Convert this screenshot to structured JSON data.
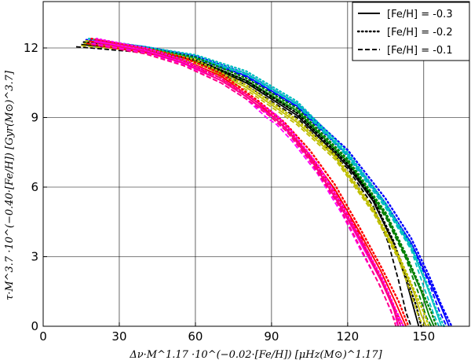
{
  "chart_data": {
    "type": "line",
    "xlabel": "Δν·M^1.17 ·10^(−0.02·[Fe/H]) [μHz(M⊙)^1.17]",
    "ylabel": "τ·M^3.7 ·10^(−0.40·[Fe/H]) [Gyr(M⊙)^3.7]",
    "xlim": [
      0,
      168
    ],
    "ylim": [
      0,
      14
    ],
    "x_ticks": [
      "0",
      "30",
      "60",
      "90",
      "120",
      "150"
    ],
    "y_ticks": [
      "0",
      "3",
      "6",
      "9",
      "12"
    ],
    "grid": true,
    "legend": {
      "placement": "top-right",
      "entries": [
        {
          "label": "[Fe/H] = -0.3",
          "dash": "solid"
        },
        {
          "label": "[Fe/H] = -0.2",
          "dash": "dotted"
        },
        {
          "label": "[Fe/H] = -0.1",
          "dash": "dashed"
        }
      ]
    },
    "series": [
      {
        "color": "#0000ff",
        "dash": "solid",
        "points": [
          [
            18,
            12.3
          ],
          [
            40,
            12.0
          ],
          [
            60,
            11.6
          ],
          [
            80,
            10.8
          ],
          [
            100,
            9.5
          ],
          [
            120,
            7.4
          ],
          [
            135,
            5.3
          ],
          [
            145,
            3.6
          ],
          [
            152,
            2.0
          ],
          [
            157,
            0.8
          ],
          [
            160,
            0.0
          ]
        ]
      },
      {
        "color": "#0000ff",
        "dash": "dotted",
        "points": [
          [
            17,
            12.35
          ],
          [
            40,
            12.05
          ],
          [
            60,
            11.65
          ],
          [
            80,
            10.9
          ],
          [
            100,
            9.6
          ],
          [
            120,
            7.6
          ],
          [
            135,
            5.5
          ],
          [
            145,
            3.8
          ],
          [
            152,
            2.2
          ],
          [
            157,
            0.9
          ],
          [
            161,
            0.0
          ]
        ]
      },
      {
        "color": "#0000ff",
        "dash": "dashed",
        "points": [
          [
            16,
            12.2
          ],
          [
            40,
            11.95
          ],
          [
            60,
            11.55
          ],
          [
            80,
            10.75
          ],
          [
            100,
            9.45
          ],
          [
            120,
            7.35
          ],
          [
            135,
            5.2
          ],
          [
            145,
            3.5
          ],
          [
            152,
            1.9
          ],
          [
            156,
            0.7
          ],
          [
            159,
            0.0
          ]
        ]
      },
      {
        "color": "#00bfbf",
        "dash": "solid",
        "points": [
          [
            17,
            12.3
          ],
          [
            40,
            12.0
          ],
          [
            60,
            11.6
          ],
          [
            80,
            10.9
          ],
          [
            100,
            9.6
          ],
          [
            120,
            7.4
          ],
          [
            135,
            5.2
          ],
          [
            145,
            3.4
          ],
          [
            151,
            1.8
          ],
          [
            155,
            0.6
          ],
          [
            157,
            0.0
          ]
        ]
      },
      {
        "color": "#00bfbf",
        "dash": "dotted",
        "points": [
          [
            18,
            12.4
          ],
          [
            40,
            12.05
          ],
          [
            60,
            11.7
          ],
          [
            80,
            11.0
          ],
          [
            100,
            9.7
          ],
          [
            120,
            7.5
          ],
          [
            135,
            5.3
          ],
          [
            145,
            3.5
          ],
          [
            151,
            1.9
          ],
          [
            155,
            0.7
          ],
          [
            158,
            0.0
          ]
        ]
      },
      {
        "color": "#00bfbf",
        "dash": "dashed",
        "points": [
          [
            16,
            12.25
          ],
          [
            40,
            11.95
          ],
          [
            60,
            11.55
          ],
          [
            80,
            10.85
          ],
          [
            100,
            9.55
          ],
          [
            120,
            7.3
          ],
          [
            135,
            5.1
          ],
          [
            145,
            3.3
          ],
          [
            150,
            1.7
          ],
          [
            154,
            0.5
          ],
          [
            156,
            0.0
          ]
        ]
      },
      {
        "color": "#007f00",
        "dash": "solid",
        "points": [
          [
            16,
            12.2
          ],
          [
            40,
            11.9
          ],
          [
            60,
            11.5
          ],
          [
            80,
            10.6
          ],
          [
            100,
            9.3
          ],
          [
            120,
            7.1
          ],
          [
            135,
            4.8
          ],
          [
            143,
            3.0
          ],
          [
            149,
            1.5
          ],
          [
            152,
            0.5
          ],
          [
            154,
            0.0
          ]
        ]
      },
      {
        "color": "#007f00",
        "dash": "dotted",
        "points": [
          [
            17,
            12.3
          ],
          [
            40,
            12.0
          ],
          [
            60,
            11.6
          ],
          [
            80,
            10.7
          ],
          [
            100,
            9.4
          ],
          [
            120,
            7.2
          ],
          [
            135,
            4.9
          ],
          [
            143,
            3.1
          ],
          [
            149,
            1.6
          ],
          [
            153,
            0.6
          ],
          [
            155,
            0.0
          ]
        ]
      },
      {
        "color": "#007f00",
        "dash": "dashed",
        "points": [
          [
            15,
            12.15
          ],
          [
            40,
            11.85
          ],
          [
            60,
            11.45
          ],
          [
            80,
            10.55
          ],
          [
            100,
            9.2
          ],
          [
            120,
            7.0
          ],
          [
            135,
            4.7
          ],
          [
            143,
            2.9
          ],
          [
            148,
            1.4
          ],
          [
            151,
            0.4
          ],
          [
            153,
            0.0
          ]
        ]
      },
      {
        "color": "#000000",
        "dash": "solid",
        "points": [
          [
            15,
            12.15
          ],
          [
            40,
            11.85
          ],
          [
            60,
            11.45
          ],
          [
            80,
            10.5
          ],
          [
            100,
            9.1
          ],
          [
            120,
            6.9
          ],
          [
            130,
            5.4
          ],
          [
            138,
            3.6
          ],
          [
            143,
            2.0
          ],
          [
            146,
            0.8
          ],
          [
            148,
            0.0
          ]
        ]
      },
      {
        "color": "#000000",
        "dash": "dotted",
        "points": [
          [
            16,
            12.25
          ],
          [
            40,
            11.95
          ],
          [
            60,
            11.5
          ],
          [
            80,
            10.6
          ],
          [
            100,
            9.2
          ],
          [
            120,
            7.0
          ],
          [
            130,
            5.5
          ],
          [
            138,
            3.7
          ],
          [
            143,
            2.1
          ],
          [
            147,
            0.9
          ],
          [
            149,
            0.0
          ]
        ]
      },
      {
        "color": "#000000",
        "dash": "dashed",
        "points": [
          [
            13,
            12.05
          ],
          [
            40,
            11.8
          ],
          [
            60,
            11.4
          ],
          [
            80,
            10.4
          ],
          [
            100,
            9.0
          ],
          [
            120,
            6.8
          ],
          [
            130,
            5.2
          ],
          [
            136,
            3.6
          ],
          [
            140,
            2.0
          ],
          [
            143,
            0.6
          ],
          [
            145,
            0.0
          ]
        ]
      },
      {
        "color": "#bfbf00",
        "dash": "solid",
        "points": [
          [
            16,
            12.2
          ],
          [
            40,
            11.9
          ],
          [
            60,
            11.4
          ],
          [
            80,
            10.3
          ],
          [
            100,
            8.8
          ],
          [
            115,
            7.3
          ],
          [
            130,
            5.0
          ],
          [
            140,
            3.0
          ],
          [
            146,
            1.5
          ],
          [
            149,
            0.5
          ],
          [
            151,
            0.0
          ]
        ]
      },
      {
        "color": "#bfbf00",
        "dash": "dotted",
        "points": [
          [
            17,
            12.3
          ],
          [
            40,
            12.0
          ],
          [
            60,
            11.5
          ],
          [
            80,
            10.4
          ],
          [
            100,
            8.9
          ],
          [
            115,
            7.4
          ],
          [
            130,
            5.1
          ],
          [
            140,
            3.1
          ],
          [
            146,
            1.6
          ],
          [
            150,
            0.6
          ],
          [
            152,
            0.0
          ]
        ]
      },
      {
        "color": "#bfbf00",
        "dash": "dashed",
        "points": [
          [
            15,
            12.1
          ],
          [
            40,
            11.85
          ],
          [
            60,
            11.3
          ],
          [
            80,
            10.2
          ],
          [
            100,
            8.7
          ],
          [
            115,
            7.2
          ],
          [
            130,
            4.9
          ],
          [
            140,
            2.9
          ],
          [
            145,
            1.4
          ],
          [
            148,
            0.4
          ],
          [
            150,
            0.0
          ]
        ]
      },
      {
        "color": "#ff0000",
        "dash": "solid",
        "points": [
          [
            18,
            12.3
          ],
          [
            40,
            11.9
          ],
          [
            55,
            11.5
          ],
          [
            70,
            10.8
          ],
          [
            85,
            9.6
          ],
          [
            95,
            8.6
          ],
          [
            105,
            7.4
          ],
          [
            115,
            5.9
          ],
          [
            125,
            4.0
          ],
          [
            133,
            2.4
          ],
          [
            139,
            1.0
          ],
          [
            143,
            0.0
          ]
        ]
      },
      {
        "color": "#ff0000",
        "dash": "dotted",
        "points": [
          [
            19,
            12.4
          ],
          [
            40,
            12.0
          ],
          [
            55,
            11.6
          ],
          [
            70,
            10.9
          ],
          [
            85,
            9.7
          ],
          [
            95,
            8.8
          ],
          [
            105,
            7.6
          ],
          [
            115,
            6.1
          ],
          [
            125,
            4.2
          ],
          [
            133,
            2.6
          ],
          [
            140,
            1.1
          ],
          [
            144,
            0.0
          ]
        ]
      },
      {
        "color": "#ff0000",
        "dash": "dashed",
        "points": [
          [
            17,
            12.2
          ],
          [
            40,
            11.8
          ],
          [
            55,
            11.4
          ],
          [
            70,
            10.7
          ],
          [
            85,
            9.5
          ],
          [
            95,
            8.5
          ],
          [
            105,
            7.3
          ],
          [
            115,
            5.8
          ],
          [
            125,
            3.9
          ],
          [
            132,
            2.3
          ],
          [
            138,
            0.9
          ],
          [
            142,
            0.0
          ]
        ]
      },
      {
        "color": "#ff00ff",
        "dash": "solid",
        "points": [
          [
            20,
            12.3
          ],
          [
            40,
            11.9
          ],
          [
            55,
            11.4
          ],
          [
            70,
            10.6
          ],
          [
            80,
            9.9
          ],
          [
            88,
            9.2
          ],
          [
            92,
            8.9
          ],
          [
            98,
            8.2
          ],
          [
            108,
            6.8
          ],
          [
            118,
            5.0
          ],
          [
            127,
            3.2
          ],
          [
            134,
            1.8
          ],
          [
            139,
            0.5
          ],
          [
            141,
            0.0
          ]
        ]
      },
      {
        "color": "#ff00ff",
        "dash": "dotted",
        "points": [
          [
            21,
            12.4
          ],
          [
            40,
            12.0
          ],
          [
            55,
            11.5
          ],
          [
            70,
            10.7
          ],
          [
            80,
            10.0
          ],
          [
            88,
            9.4
          ],
          [
            92,
            9.1
          ],
          [
            98,
            8.4
          ],
          [
            108,
            7.0
          ],
          [
            118,
            5.2
          ],
          [
            127,
            3.4
          ],
          [
            134,
            2.0
          ],
          [
            139,
            0.7
          ],
          [
            142,
            0.0
          ]
        ]
      },
      {
        "color": "#ff00ff",
        "dash": "dashed",
        "points": [
          [
            19,
            12.2
          ],
          [
            40,
            11.8
          ],
          [
            55,
            11.3
          ],
          [
            70,
            10.5
          ],
          [
            80,
            9.8
          ],
          [
            88,
            9.0
          ],
          [
            92,
            8.7
          ],
          [
            98,
            8.0
          ],
          [
            108,
            6.6
          ],
          [
            118,
            4.8
          ],
          [
            126,
            3.1
          ],
          [
            133,
            1.7
          ],
          [
            138,
            0.4
          ],
          [
            140,
            0.0
          ]
        ]
      },
      {
        "color": "#ff0080",
        "dash": "solid",
        "points": [
          [
            20,
            12.25
          ],
          [
            40,
            11.85
          ],
          [
            55,
            11.35
          ],
          [
            70,
            10.6
          ],
          [
            80,
            9.9
          ],
          [
            90,
            9.1
          ],
          [
            96,
            8.5
          ],
          [
            106,
            7.1
          ],
          [
            116,
            5.4
          ],
          [
            126,
            3.5
          ],
          [
            133,
            2.0
          ],
          [
            138,
            0.8
          ],
          [
            140,
            0.0
          ]
        ]
      },
      {
        "color": "#ff0080",
        "dash": "dotted",
        "points": [
          [
            21,
            12.35
          ],
          [
            40,
            11.95
          ],
          [
            55,
            11.45
          ],
          [
            70,
            10.7
          ],
          [
            80,
            10.0
          ],
          [
            90,
            9.2
          ],
          [
            96,
            8.6
          ],
          [
            106,
            7.2
          ],
          [
            116,
            5.5
          ],
          [
            126,
            3.6
          ],
          [
            133,
            2.1
          ],
          [
            138,
            0.9
          ],
          [
            141,
            0.0
          ]
        ]
      },
      {
        "color": "#ff0080",
        "dash": "dashed",
        "points": [
          [
            19,
            12.15
          ],
          [
            40,
            11.75
          ],
          [
            55,
            11.25
          ],
          [
            70,
            10.5
          ],
          [
            80,
            9.8
          ],
          [
            90,
            9.0
          ],
          [
            96,
            8.4
          ],
          [
            106,
            7.0
          ],
          [
            116,
            5.3
          ],
          [
            125,
            3.4
          ],
          [
            132,
            1.9
          ],
          [
            137,
            0.7
          ],
          [
            139,
            0.0
          ]
        ]
      }
    ]
  }
}
